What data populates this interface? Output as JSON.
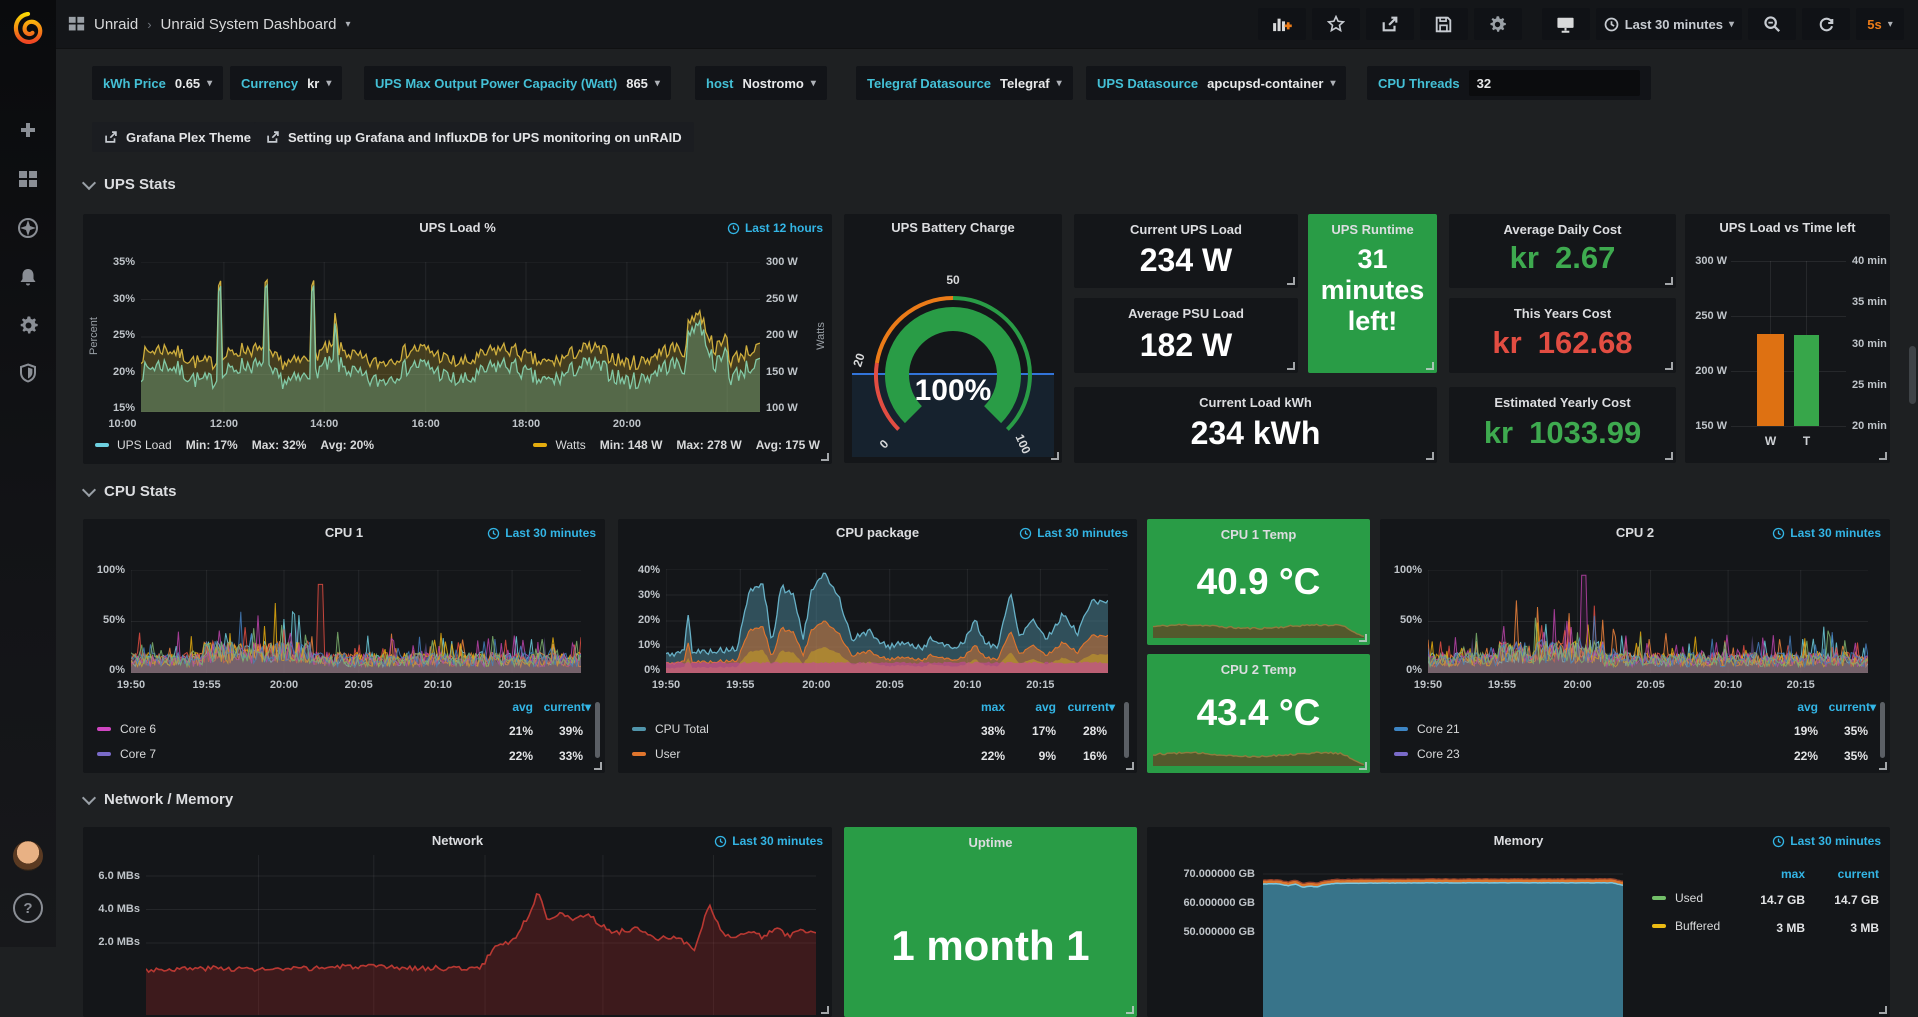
{
  "topbar": {
    "breadcrumb_folder": "Unraid",
    "breadcrumb_title": "Unraid System Dashboard",
    "time_range": "Last 30 minutes",
    "refresh_interval": "5s"
  },
  "variables": [
    {
      "label": "kWh Price",
      "value": "0.65"
    },
    {
      "label": "Currency",
      "value": "kr"
    },
    {
      "label": "UPS Max Output Power Capacity (Watt)",
      "value": "865"
    },
    {
      "label": "host",
      "value": "Nostromo"
    },
    {
      "label": "Telegraf Datasource",
      "value": "Telegraf"
    },
    {
      "label": "UPS Datasource",
      "value": "apcupsd-container"
    },
    {
      "label": "CPU Threads",
      "value": "32"
    }
  ],
  "links": [
    {
      "label": "Grafana Plex Theme"
    },
    {
      "label": "Setting up Grafana and InfluxDB for UPS monitoring on unRAID"
    }
  ],
  "sections": [
    {
      "title": "UPS Stats"
    },
    {
      "title": "CPU Stats"
    },
    {
      "title": "Network / Memory"
    }
  ],
  "panels": {
    "ups_load": {
      "title": "UPS Load %",
      "timerange": "Last 12 hours",
      "ylabel_left": "Percent",
      "ylabel_right": "Watts",
      "yticks_left": [
        "35%",
        "30%",
        "25%",
        "20%",
        "15%"
      ],
      "yticks_right": [
        "300 W",
        "250 W",
        "200 W",
        "150 W",
        "100 W"
      ],
      "xticks": [
        "10:00",
        "12:00",
        "14:00",
        "16:00",
        "18:00",
        "20:00"
      ],
      "legend": [
        {
          "name": "UPS Load",
          "color": "#6ed0e0",
          "min": "Min: 17%",
          "max": "Max: 32%",
          "avg": "Avg: 20%"
        },
        {
          "name": "Watts",
          "color": "#e5ac0e",
          "min": "Min: 148 W",
          "max": "Max: 278 W",
          "avg": "Avg: 175 W"
        }
      ]
    },
    "battery": {
      "title": "UPS Battery Charge",
      "value": "100%",
      "value_percent": 100,
      "ticks": [
        "0",
        "20",
        "50",
        "100"
      ],
      "thresholds": [
        {
          "to": 20,
          "color": "#e24d42"
        },
        {
          "to": 50,
          "color": "#eb7b18"
        },
        {
          "to": 100,
          "color": "#299c46"
        }
      ],
      "bar_color": "#299c46"
    },
    "current_ups_load": {
      "title": "Current UPS Load",
      "value": "234 W"
    },
    "avg_psu_load": {
      "title": "Average PSU Load",
      "value": "182 W"
    },
    "ups_runtime": {
      "title": "UPS Runtime",
      "value": "31 minutes left!"
    },
    "current_load_kwh": {
      "title": "Current Load kWh",
      "value": "234 kWh"
    },
    "avg_daily_cost": {
      "title": "Average Daily Cost",
      "prefix": "kr",
      "amount": "2.67",
      "color": "#3eaa4f"
    },
    "this_years_cost": {
      "title": "This Years Cost",
      "prefix": "kr",
      "amount": "162.68",
      "color": "#e24d42"
    },
    "est_yearly_cost": {
      "title": "Estimated Yearly Cost",
      "prefix": "kr",
      "amount": "1033.99",
      "color": "#3eaa4f"
    },
    "ups_bar": {
      "title": "UPS Load vs Time left",
      "left_ticks": [
        "300 W",
        "250 W",
        "200 W",
        "150 W"
      ],
      "right_ticks": [
        "40 min",
        "35 min",
        "30 min",
        "25 min",
        "20 min"
      ],
      "left_range": [
        150,
        300
      ],
      "right_range": [
        20,
        40
      ],
      "bars": [
        {
          "label": "W",
          "value": 234,
          "axis": "left",
          "color": "#de7112"
        },
        {
          "label": "T",
          "value": 31,
          "axis": "right",
          "color": "#37a64a"
        }
      ]
    },
    "cpu1": {
      "title": "CPU 1",
      "timerange": "Last 30 minutes",
      "yticks": [
        "100%",
        "50%",
        "0%"
      ],
      "xticks": [
        "19:50",
        "19:55",
        "20:00",
        "20:05",
        "20:10",
        "20:15"
      ],
      "legend": {
        "cols": [
          "avg",
          "current"
        ],
        "rows": [
          {
            "name": "Core 6",
            "color": "#cf46c1",
            "avg": "21%",
            "current": "39%"
          },
          {
            "name": "Core 7",
            "color": "#7a6bc9",
            "avg": "22%",
            "current": "33%"
          }
        ]
      }
    },
    "cpu_package": {
      "title": "CPU package",
      "timerange": "Last 30 minutes",
      "yticks": [
        "40%",
        "30%",
        "20%",
        "10%",
        "0%"
      ],
      "xticks": [
        "19:50",
        "19:55",
        "20:00",
        "20:05",
        "20:10",
        "20:15"
      ],
      "legend": {
        "cols": [
          "max",
          "avg",
          "current"
        ],
        "rows": [
          {
            "name": "CPU Total",
            "color": "#5195ab",
            "max": "38%",
            "avg": "17%",
            "current": "28%"
          },
          {
            "name": "User",
            "color": "#e0752d",
            "max": "22%",
            "avg": "9%",
            "current": "16%"
          }
        ]
      }
    },
    "cpu1_temp": {
      "title": "CPU 1 Temp",
      "value": "40.9 °C"
    },
    "cpu2_temp": {
      "title": "CPU 2 Temp",
      "value": "43.4 °C"
    },
    "cpu2": {
      "title": "CPU 2",
      "timerange": "Last 30 minutes",
      "yticks": [
        "100%",
        "50%",
        "0%"
      ],
      "xticks": [
        "19:50",
        "19:55",
        "20:00",
        "20:05",
        "20:10",
        "20:15"
      ],
      "legend": {
        "cols": [
          "avg",
          "current"
        ],
        "rows": [
          {
            "name": "Core 21",
            "color": "#3d85c4",
            "avg": "19%",
            "current": "35%"
          },
          {
            "name": "Core 23",
            "color": "#7a6bc9",
            "avg": "22%",
            "current": "35%"
          }
        ]
      }
    },
    "network": {
      "title": "Network",
      "timerange": "Last 30 minutes",
      "yticks": [
        "6.0 MBs",
        "4.0 MBs",
        "2.0 MBs"
      ]
    },
    "uptime": {
      "title": "Uptime",
      "value": "1 month 1"
    },
    "memory": {
      "title": "Memory",
      "timerange": "Last 30 minutes",
      "yticks": [
        "70.000000 GB",
        "60.000000 GB",
        "50.000000 GB"
      ],
      "legend": {
        "cols": [
          "max",
          "current"
        ],
        "rows": [
          {
            "name": "Used",
            "color": "#73bf69",
            "max": "14.7 GB",
            "current": "14.7 GB"
          },
          {
            "name": "Buffered",
            "color": "#ecbb13",
            "max": "3 MB",
            "current": "3 MB"
          }
        ]
      }
    }
  }
}
